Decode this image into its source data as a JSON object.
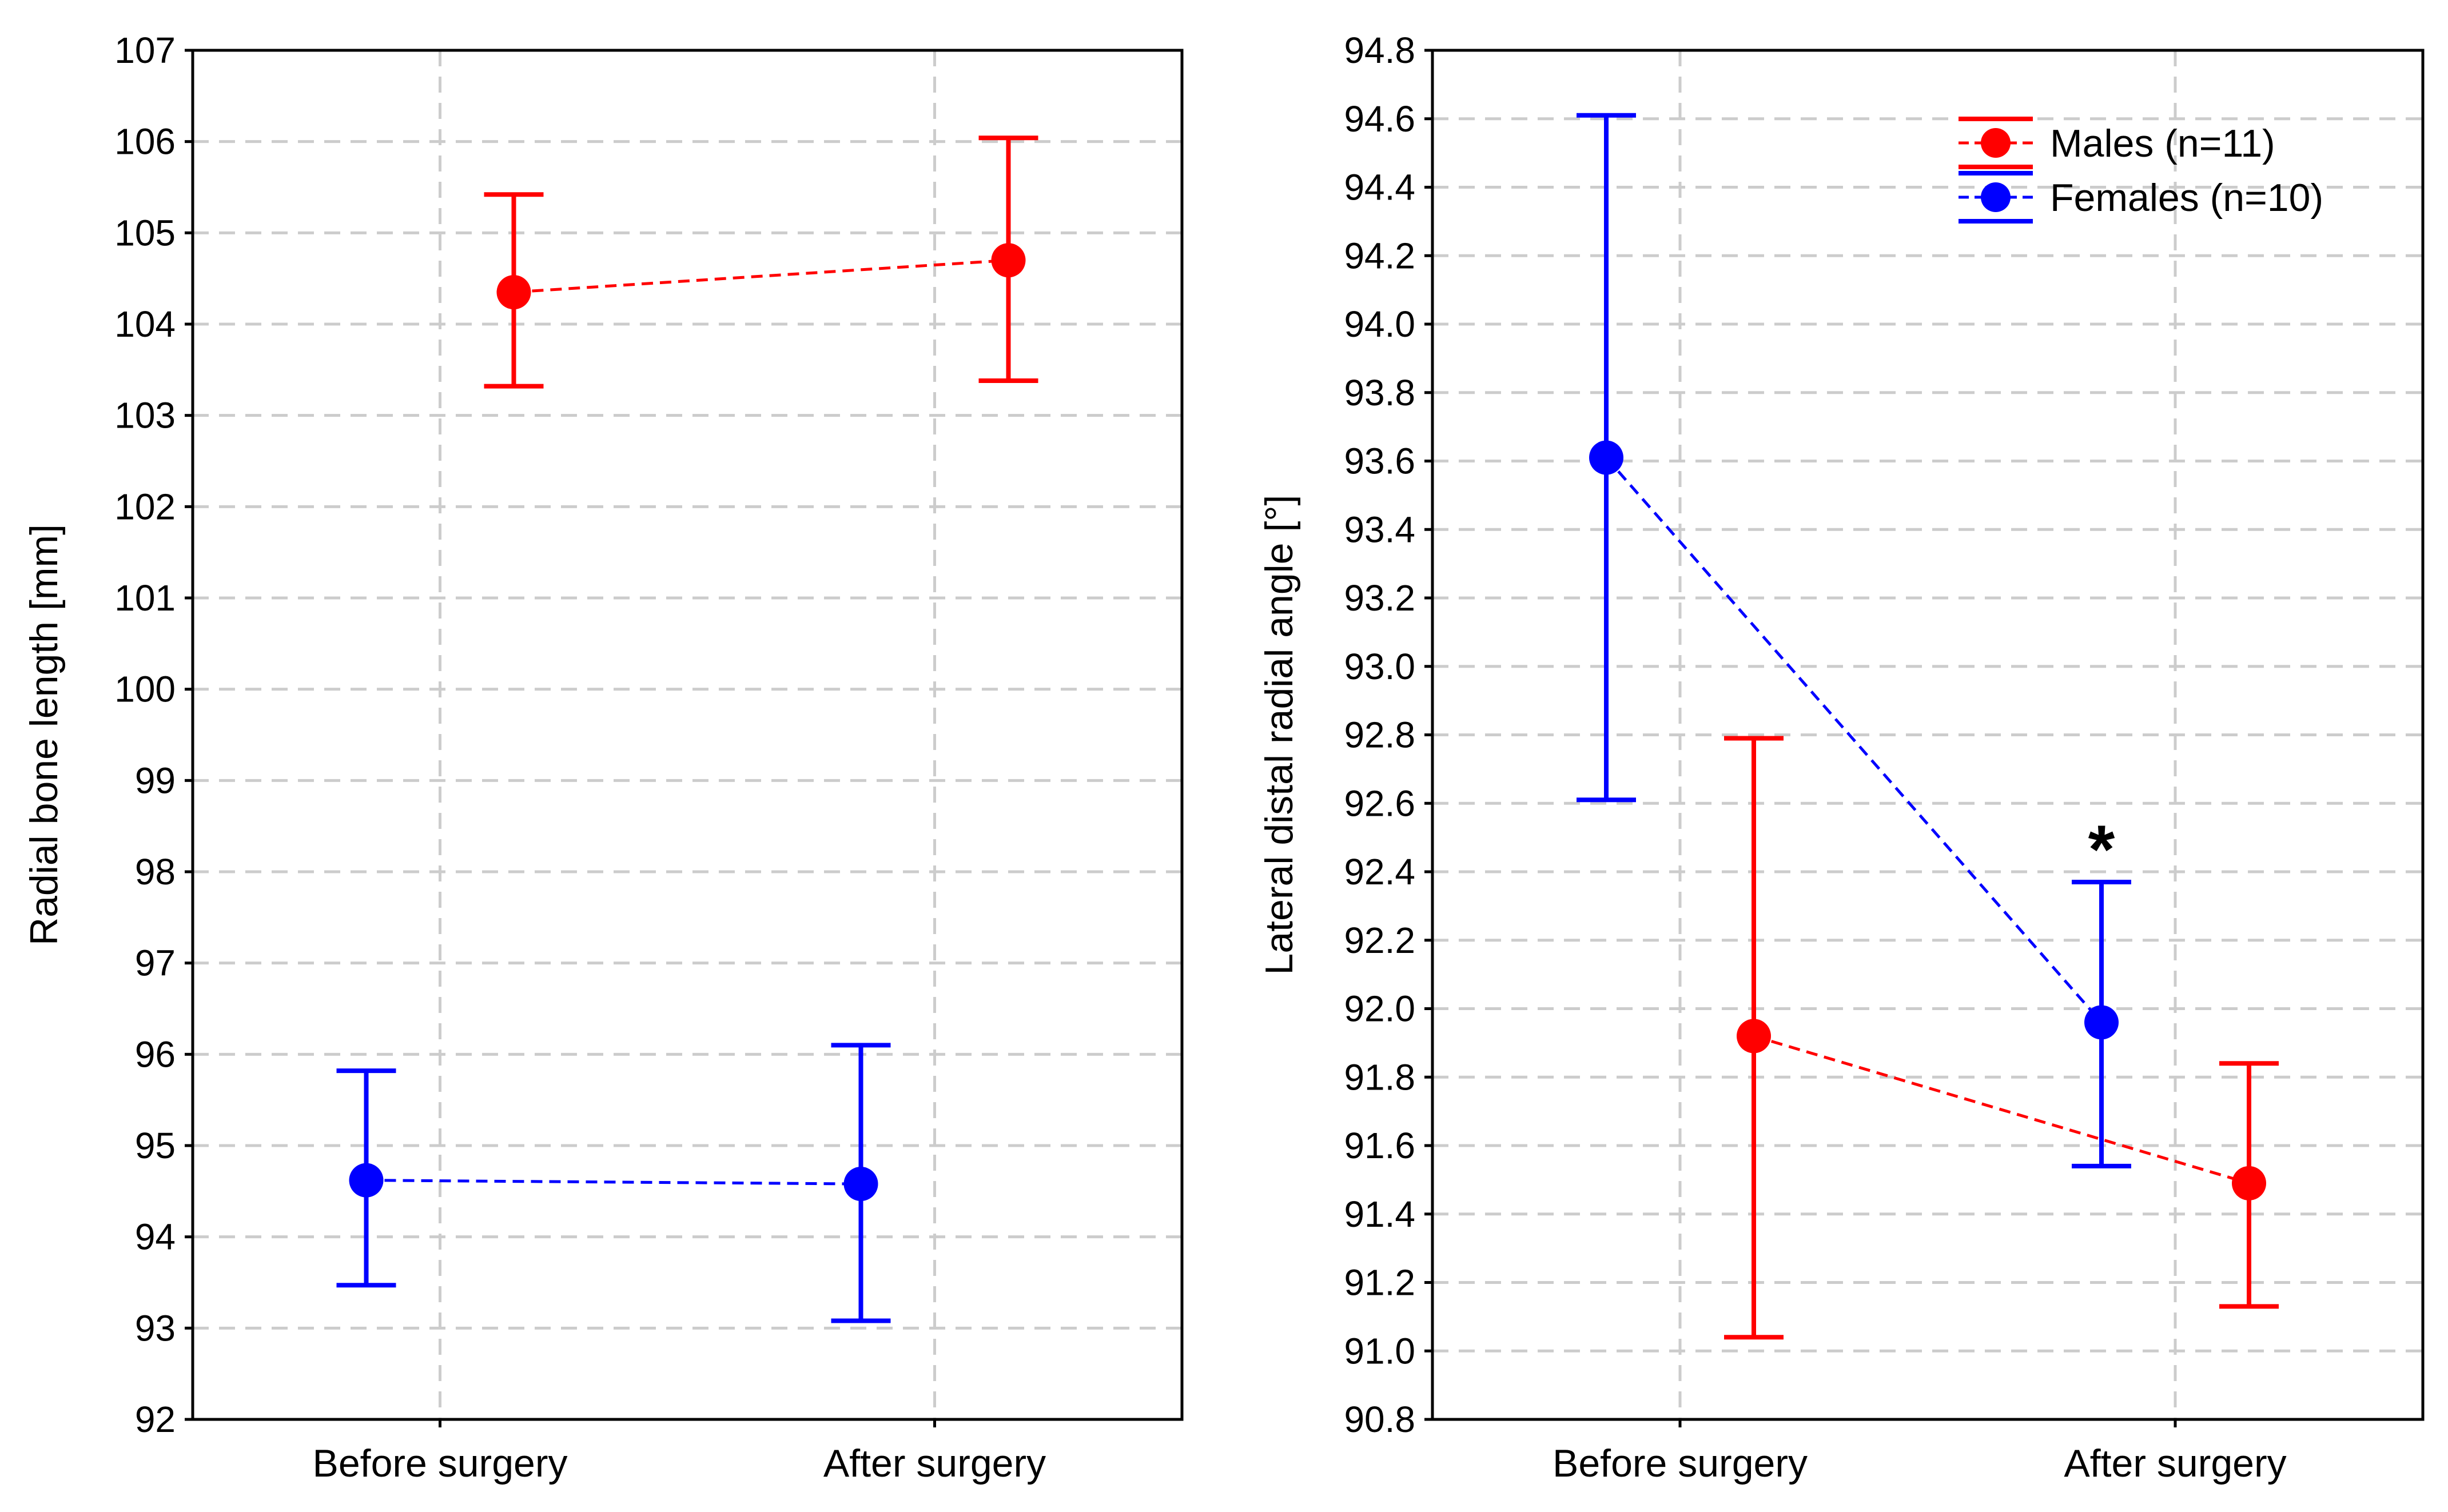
{
  "colors": {
    "males": "#ff0000",
    "females": "#0000ff",
    "grid": "#cccccc",
    "axis": "#000000"
  },
  "chart_data": [
    {
      "type": "line",
      "subtype": "mean-with-error-bars",
      "title": "",
      "xlabel": "",
      "ylabel": "Radial bone length [mm]",
      "categories": [
        "Before surgery",
        "After surgery"
      ],
      "ylim": [
        92,
        107
      ],
      "yticks": [
        92,
        93,
        94,
        95,
        96,
        97,
        98,
        99,
        100,
        101,
        102,
        103,
        104,
        105,
        106,
        107
      ],
      "ytick_labels": [
        "92",
        "93",
        "94",
        "95",
        "96",
        "97",
        "98",
        "99",
        "100",
        "101",
        "102",
        "103",
        "104",
        "105",
        "106",
        "107"
      ],
      "grid": true,
      "legend": false,
      "series": [
        {
          "name": "Males (n=11)",
          "color": "#ff0000",
          "x_offset": 0.15,
          "mean": [
            104.35,
            104.7
          ],
          "lower": [
            103.32,
            103.38
          ],
          "upper": [
            105.42,
            106.04
          ]
        },
        {
          "name": "Females (n=10)",
          "color": "#0000ff",
          "x_offset": -0.15,
          "mean": [
            94.62,
            94.58
          ],
          "lower": [
            93.47,
            93.08
          ],
          "upper": [
            95.82,
            96.1
          ]
        }
      ],
      "annotations": []
    },
    {
      "type": "line",
      "subtype": "mean-with-error-bars",
      "title": "",
      "xlabel": "",
      "ylabel": "Lateral distal radial angle [°]",
      "categories": [
        "Before surgery",
        "After surgery"
      ],
      "ylim": [
        90.8,
        94.8
      ],
      "yticks": [
        90.8,
        91.0,
        91.2,
        91.4,
        91.6,
        91.8,
        92.0,
        92.2,
        92.4,
        92.6,
        92.8,
        93.0,
        93.2,
        93.4,
        93.6,
        93.8,
        94.0,
        94.2,
        94.4,
        94.6,
        94.8
      ],
      "ytick_labels": [
        "90.8",
        "91.0",
        "91.2",
        "91.4",
        "91.6",
        "91.8",
        "92.0",
        "92.2",
        "92.4",
        "92.6",
        "92.8",
        "93.0",
        "93.2",
        "93.4",
        "93.6",
        "93.8",
        "94.0",
        "94.2",
        "94.4",
        "94.6",
        "94.8"
      ],
      "grid": true,
      "legend": true,
      "legend_position": "top-right",
      "series": [
        {
          "name": "Males (n=11)",
          "color": "#ff0000",
          "x_offset": 0.15,
          "mean": [
            91.92,
            91.49
          ],
          "lower": [
            91.04,
            91.13
          ],
          "upper": [
            92.79,
            91.84
          ]
        },
        {
          "name": "Females (n=10)",
          "color": "#0000ff",
          "x_offset": -0.15,
          "mean": [
            93.61,
            91.96
          ],
          "lower": [
            92.61,
            91.54
          ],
          "upper": [
            94.61,
            92.37
          ]
        }
      ],
      "annotations": [
        {
          "text": "*",
          "category": 1,
          "series": 1,
          "y": 92.48
        }
      ]
    }
  ]
}
